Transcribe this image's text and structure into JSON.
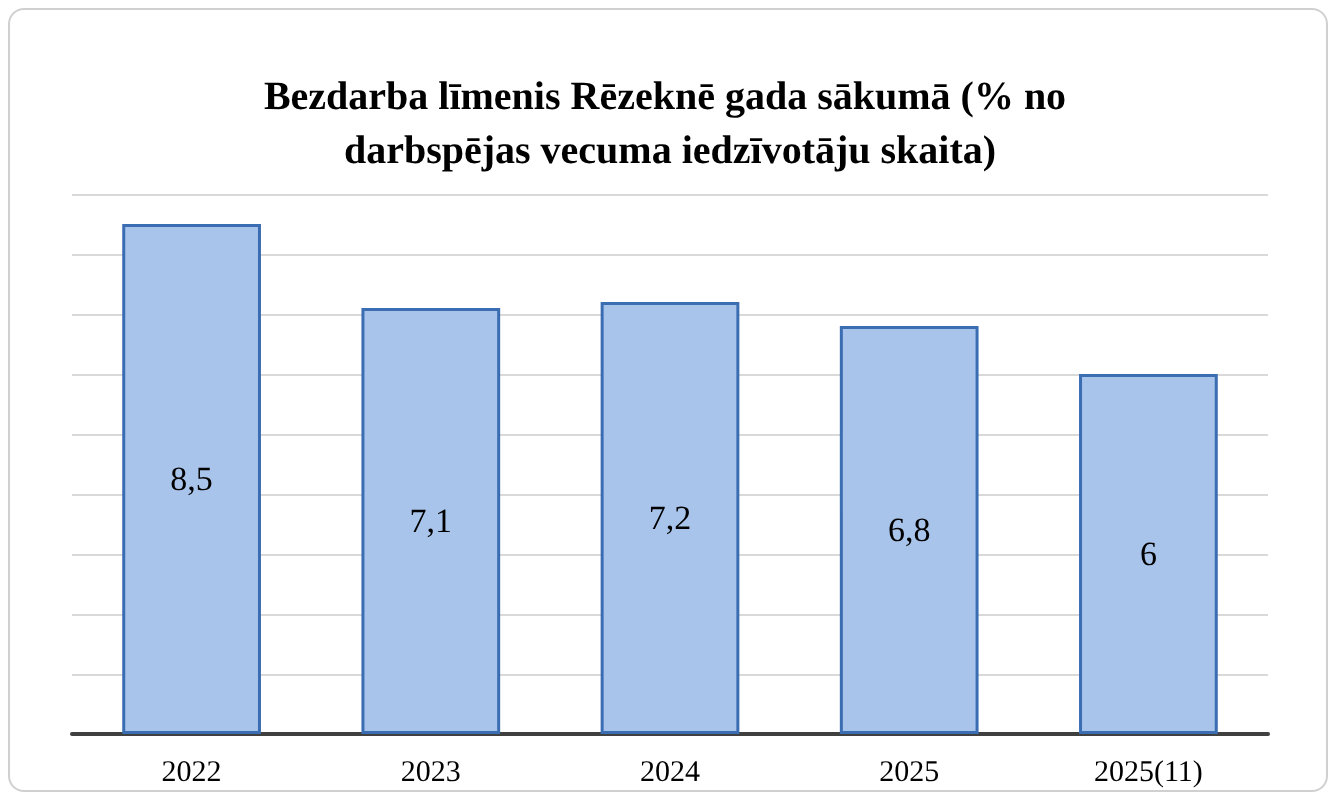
{
  "chart_data": {
    "type": "bar",
    "title": "Bezdarba līmenis Rēzeknē gada sākumā (% no darbspējas vecuma iedzīvotāju skaita)",
    "categories": [
      "2022",
      "2023",
      "2024",
      "2025",
      "2025(11)"
    ],
    "values": [
      8.5,
      7.1,
      7.2,
      6.8,
      6
    ],
    "color": "#a9c4eb",
    "ylim": [
      0,
      9
    ],
    "yticks": [
      {
        "value": 0,
        "label": null
      },
      {
        "value": 1,
        "label": null
      },
      {
        "value": 2,
        "label": null
      },
      {
        "value": 3,
        "label": null
      },
      {
        "value": 4,
        "label": null
      },
      {
        "value": 5,
        "label": null
      },
      {
        "value": 6,
        "label": null
      },
      {
        "value": 7,
        "label": null
      },
      {
        "value": 8,
        "label": null
      },
      {
        "value": 9,
        "label": null
      }
    ],
    "value_labels": [
      "8,5",
      "7,1",
      "7,2",
      "6,8",
      "6"
    ],
    "grid": "y",
    "tick_labels": "x"
  }
}
